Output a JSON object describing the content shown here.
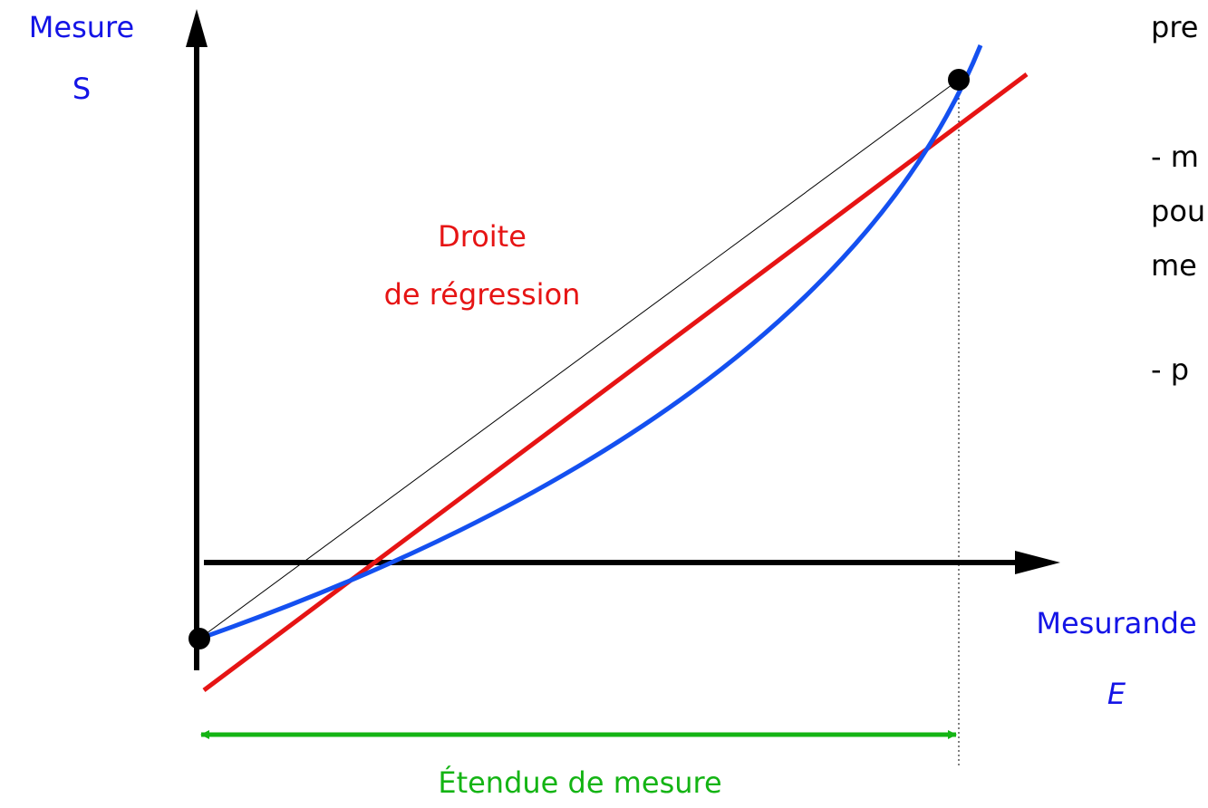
{
  "axes": {
    "y_label": "Mesure",
    "y_symbol": "S",
    "x_label": "Mesurande",
    "x_symbol": "E"
  },
  "regression_label": [
    "Droite",
    "de régression"
  ],
  "range_label": "Étendue de mesure",
  "side_text": [
    "pre",
    "- m",
    "pou",
    "me",
    "- p"
  ]
}
